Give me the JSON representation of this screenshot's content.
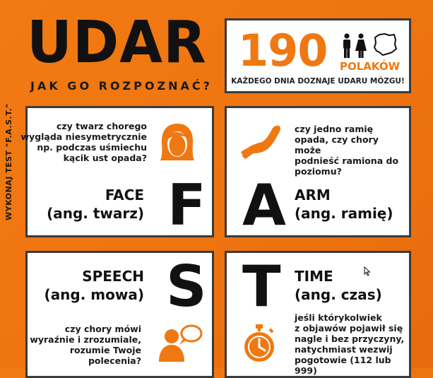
{
  "header": {
    "title": "UDAR",
    "subtitle": "JAK GO ROZPOZNAĆ?"
  },
  "side_text": "WYKONAJ TEST \"F.A.S.T.\"",
  "stat": {
    "number": "190",
    "label": "POLAKÓW",
    "caption": "KAŻDEGO DNIA DOZNAJE UDARU MÓZGU!"
  },
  "cards": {
    "face": {
      "letter": "F",
      "description": [
        "czy twarz chorego",
        "wygląda niesymetrycznie",
        "np. podczas uśmiechu",
        "kącik ust opada?"
      ],
      "heading": [
        "FACE",
        "(ang. twarz)"
      ]
    },
    "arm": {
      "letter": "A",
      "description": [
        "czy jedno ramię",
        "opada, czy chory może",
        "podnieść ramiona do",
        "poziomu?"
      ],
      "heading": [
        "ARM",
        "(ang. ramię)"
      ]
    },
    "speech": {
      "letter": "S",
      "description": [
        "czy chory mówi",
        "wyraźnie i zrozumiale,",
        "rozumie Twoje",
        "polecenia?"
      ],
      "heading": [
        "SPEECH",
        "(ang. mowa)"
      ]
    },
    "time": {
      "letter": "T",
      "description": [
        "jeśli którykolwiek",
        "z objawów pojawił się",
        "nagle i bez przyczyny,",
        "natychmiast wezwij",
        "pogotowie (112 lub 999)"
      ],
      "heading": [
        "TIME",
        "(ang. czas)"
      ]
    }
  },
  "colors": {
    "accent": "#ef7812",
    "background": "#ee7410",
    "text": "#111111",
    "border": "#3a3a3a"
  },
  "icons": [
    "male-person-icon",
    "female-person-icon",
    "poland-map-icon",
    "woman-face-icon",
    "arm-icon",
    "speaking-person-icon",
    "stopwatch-icon",
    "mouse-cursor-icon"
  ]
}
